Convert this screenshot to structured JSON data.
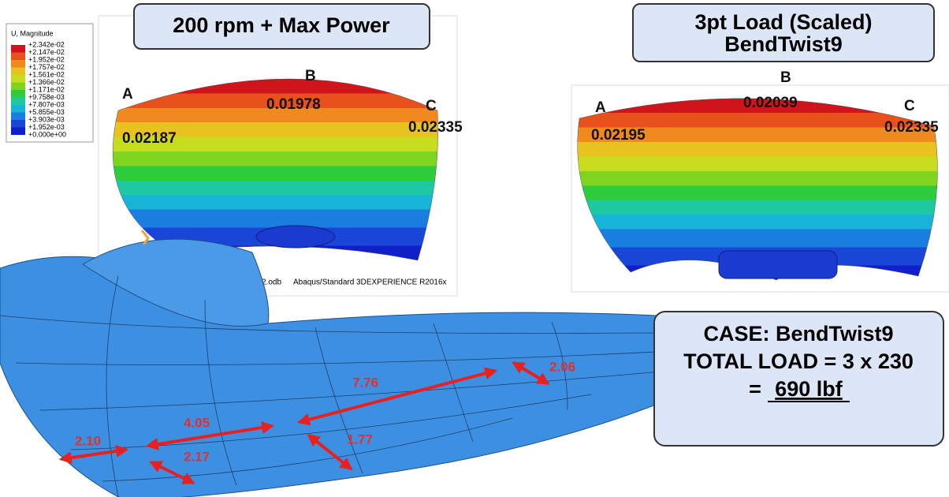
{
  "left_panel": {
    "title": "200 rpm + Max Power",
    "legend": {
      "title": "U, Magnitude",
      "entries": [
        "+2.342e-02",
        "+2.147e-02",
        "+1.952e-02",
        "+1.757e-02",
        "+1.561e-02",
        "+1.366e-02",
        "+1.171e-02",
        "+9.758e-03",
        "+7.807e-03",
        "+5.855e-03",
        "+3.903e-03",
        "+1.952e-03",
        "+0.000e+00"
      ]
    },
    "points": [
      {
        "label": "A",
        "value": "0.02187"
      },
      {
        "label": "B",
        "value": "0.01978"
      },
      {
        "label": "C",
        "value": "0.02335"
      }
    ],
    "footer": [
      "2.odb",
      "Abaqus/Standard 3DEXPERIENCE R2016x"
    ]
  },
  "right_panel": {
    "title_lines": [
      "3pt Load (Scaled)",
      "BendTwist9"
    ],
    "points": [
      {
        "label": "A",
        "value": "0.02195"
      },
      {
        "label": "B",
        "value": "0.02039"
      },
      {
        "label": "C",
        "value": "0.02335"
      }
    ]
  },
  "case_box": {
    "lines": [
      "CASE: BendTwist9",
      "TOTAL LOAD = 3 x 230"
    ],
    "result_prefix": "=",
    "result": "690 lbf"
  },
  "dimensions": [
    "7.76",
    "2.06",
    "4.05",
    "2.10",
    "2.17",
    "1.77"
  ]
}
